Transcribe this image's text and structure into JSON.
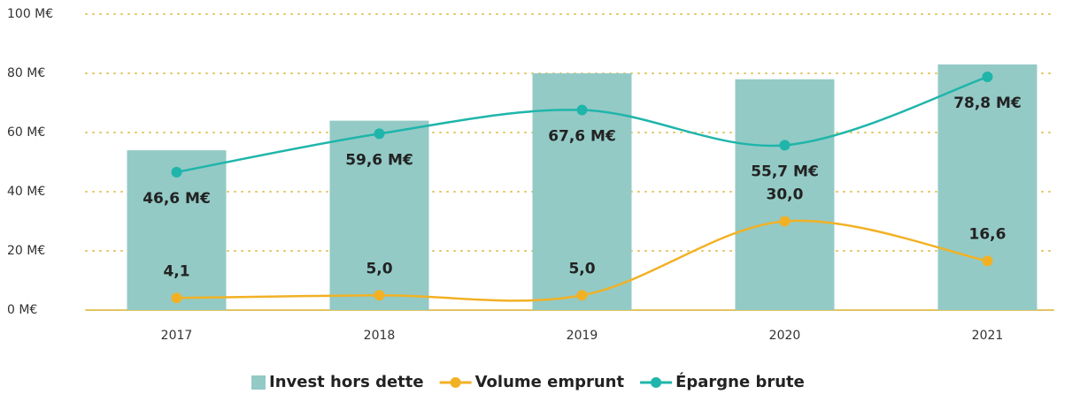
{
  "chart_data": {
    "type": "bar",
    "categories": [
      "2017",
      "2018",
      "2019",
      "2020",
      "2021"
    ],
    "series": [
      {
        "name": "Invest hors dette",
        "type": "bar",
        "color": "#93cac6",
        "values": [
          54,
          64,
          80,
          78,
          83
        ]
      },
      {
        "name": "Volume emprunt",
        "type": "line",
        "color": "#f2b124",
        "values": [
          4.1,
          5.0,
          5.0,
          30.0,
          16.6
        ],
        "value_labels": [
          "4,1",
          "5,0",
          "5,0",
          "30,0",
          "16,6"
        ]
      },
      {
        "name": "Épargne brute",
        "type": "line",
        "color": "#1fb5aa",
        "values": [
          46.6,
          59.6,
          67.6,
          55.7,
          78.8
        ],
        "value_labels": [
          "46,6 M€",
          "59,6 M€",
          "67,6 M€",
          "55,7 M€",
          "78,8 M€"
        ]
      }
    ],
    "ylim": [
      0,
      100
    ],
    "yticks": [
      {
        "value": 0,
        "label": "0 M€"
      },
      {
        "value": 20,
        "label": "20 M€"
      },
      {
        "value": 40,
        "label": "40 M€"
      },
      {
        "value": 60,
        "label": "60 M€"
      },
      {
        "value": 80,
        "label": "80 M€"
      },
      {
        "value": 100,
        "label": "100 M€"
      }
    ],
    "grid": true,
    "legend": "bottom"
  }
}
